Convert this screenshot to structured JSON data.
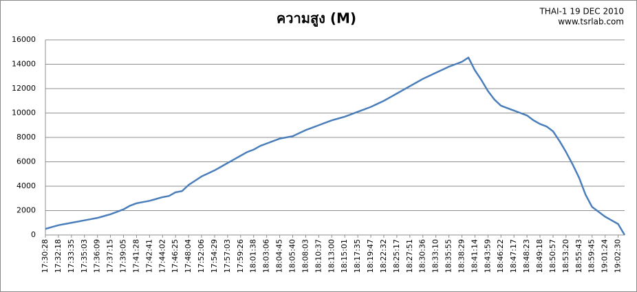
{
  "chart_data": {
    "type": "line",
    "title": "ความสูง (M)",
    "annotations": [
      "THAI-1 19 DEC 2010",
      "www.tsrlab.com"
    ],
    "categories": [
      "17:30:28",
      null,
      "17:32:18",
      null,
      "17:33:35",
      null,
      "17:35:03",
      null,
      "17:36:09",
      null,
      "17:37:15",
      null,
      "17:39:05",
      null,
      "17:41:28",
      null,
      "17:42:41",
      null,
      "17:44:02",
      null,
      "17:46:25",
      null,
      "17:48:04",
      null,
      "17:52:06",
      null,
      "17:54:29",
      null,
      "17:57:03",
      null,
      "17:59:26",
      null,
      "18:01:38",
      null,
      "18:03:06",
      null,
      "18:04:45",
      null,
      "18:05:40",
      null,
      "18:08:03",
      null,
      "18:10:37",
      null,
      "18:13:00",
      null,
      "18:15:01",
      null,
      "18:17:35",
      null,
      "18:19:47",
      null,
      "18:22:32",
      null,
      "18:25:17",
      null,
      "18:27:51",
      null,
      "18:30:36",
      null,
      "18:33:10",
      null,
      "18:35:55",
      null,
      "18:38:29",
      null,
      "18:41:14",
      null,
      "18:43:59",
      null,
      "18:46:22",
      null,
      "18:47:17",
      null,
      "18:48:23",
      null,
      "18:49:18",
      null,
      "18:50:57",
      null,
      "18:53:20",
      null,
      "18:55:43",
      null,
      "18:59:45",
      null,
      "19:01:24",
      null,
      "19:02:30",
      null
    ],
    "series": [
      {
        "color": "#4a7ebb",
        "values": [
          500,
          650,
          800,
          900,
          1000,
          1100,
          1200,
          1300,
          1400,
          1550,
          1700,
          1900,
          2100,
          2400,
          2600,
          2700,
          2800,
          2950,
          3100,
          3200,
          3500,
          3600,
          4100,
          4450,
          4800,
          5050,
          5300,
          5600,
          5900,
          6200,
          6500,
          6800,
          7000,
          7300,
          7500,
          7700,
          7900,
          8000,
          8100,
          8350,
          8600,
          8800,
          9000,
          9200,
          9400,
          9550,
          9700,
          9900,
          10100,
          10300,
          10500,
          10750,
          11000,
          11300,
          11600,
          11900,
          12200,
          12500,
          12800,
          13050,
          13300,
          13550,
          13800,
          14000,
          14200,
          14550,
          13500,
          12700,
          11800,
          11100,
          10600,
          10400,
          10200,
          10000,
          9800,
          9400,
          9100,
          8900,
          8500,
          7700,
          6800,
          5800,
          4700,
          3300,
          2300,
          1900,
          1500,
          1200,
          900,
          0
        ]
      }
    ],
    "ylim": [
      0,
      16000
    ],
    "yticks": [
      0,
      2000,
      4000,
      6000,
      8000,
      10000,
      12000,
      14000,
      16000
    ],
    "grid": true
  }
}
